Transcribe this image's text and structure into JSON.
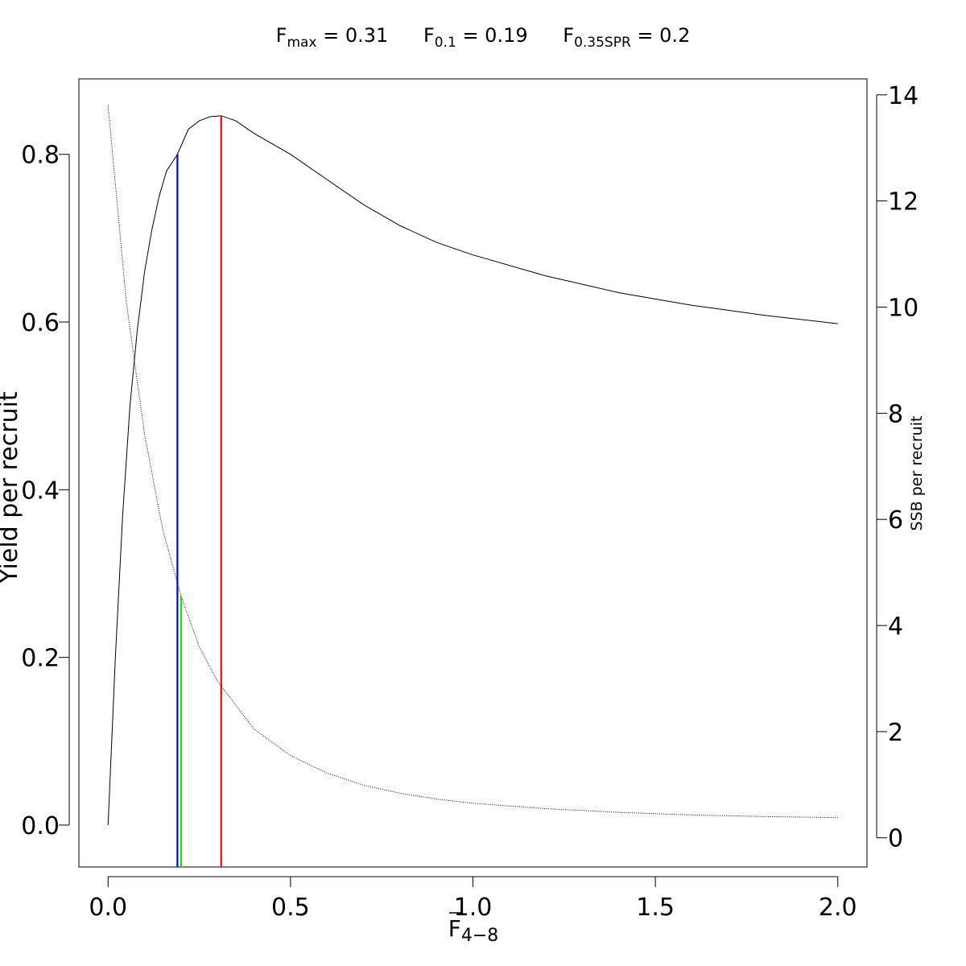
{
  "header": {
    "refs": [
      {
        "base": "F",
        "sub": "max",
        "text": " = 0.31"
      },
      {
        "base": "F",
        "sub": "0.1",
        "text": " = 0.19"
      },
      {
        "base": "F",
        "sub": "0.35SPR",
        "text": " = 0.2"
      }
    ]
  },
  "chart_data": {
    "type": "line",
    "xlabel": {
      "base": "F",
      "sub": "4−8",
      "overline": true
    },
    "ylabel_left": "Yield per recruit",
    "ylabel_right": "SSB per recruit",
    "xlim": [
      -0.08,
      2.08
    ],
    "ylim_left": [
      -0.05,
      0.89
    ],
    "ylim_right": [
      -0.55,
      14.3
    ],
    "x_ticks": [
      "0.0",
      "0.5",
      "1.0",
      "1.5",
      "2.0"
    ],
    "y_left_ticks": [
      "0.0",
      "0.2",
      "0.4",
      "0.6",
      "0.8"
    ],
    "y_right_ticks": [
      "0",
      "2",
      "4",
      "6",
      "8",
      "10",
      "12",
      "14"
    ],
    "series": [
      {
        "axis": "left",
        "style": "solid",
        "color": "#000000",
        "x": [
          0,
          0.02,
          0.04,
          0.06,
          0.08,
          0.1,
          0.12,
          0.14,
          0.16,
          0.19,
          0.22,
          0.25,
          0.28,
          0.31,
          0.35,
          0.4,
          0.5,
          0.6,
          0.7,
          0.8,
          0.9,
          1.0,
          1.2,
          1.4,
          1.6,
          1.8,
          2.0
        ],
        "values": [
          0.0,
          0.2,
          0.37,
          0.5,
          0.59,
          0.66,
          0.71,
          0.75,
          0.78,
          0.8,
          0.83,
          0.84,
          0.845,
          0.846,
          0.84,
          0.825,
          0.8,
          0.77,
          0.74,
          0.715,
          0.695,
          0.68,
          0.655,
          0.635,
          0.62,
          0.608,
          0.598
        ]
      },
      {
        "axis": "right",
        "style": "dotted",
        "color": "#000000",
        "x": [
          0,
          0.05,
          0.1,
          0.15,
          0.2,
          0.25,
          0.3,
          0.4,
          0.5,
          0.6,
          0.7,
          0.8,
          0.9,
          1.0,
          1.2,
          1.4,
          1.6,
          1.8,
          2.0
        ],
        "values": [
          13.8,
          10.1,
          7.6,
          5.8,
          4.55,
          3.6,
          2.95,
          2.05,
          1.55,
          1.22,
          0.99,
          0.84,
          0.73,
          0.65,
          0.55,
          0.48,
          0.43,
          0.4,
          0.38
        ]
      }
    ],
    "reference_lines": [
      {
        "name": "Fmax",
        "x": 0.31,
        "y": 0.846,
        "axis": "left",
        "color": "#ff0000"
      },
      {
        "name": "F0.1",
        "x": 0.19,
        "y": 0.8,
        "axis": "left",
        "color": "#0000ff"
      },
      {
        "name": "F0.35SPR",
        "x": 0.2,
        "y": 4.55,
        "axis": "right",
        "color": "#00ee00"
      }
    ]
  }
}
